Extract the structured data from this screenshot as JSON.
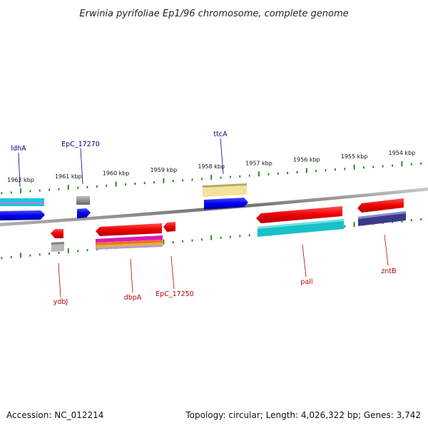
{
  "title": "Erwinia pyrifoliae Ep1/96 chromosome, complete genome",
  "footer": {
    "accession": "Accession: NC_012214",
    "topology": "Topology: circular; Length: 4,026,322 bp; Genes: 3,742"
  },
  "scale": {
    "unit": "kbp",
    "labels": [
      {
        "kbp": 1962,
        "text": "1962 kbp"
      },
      {
        "kbp": 1961,
        "text": "1961 kbp"
      },
      {
        "kbp": 1960,
        "text": "1960 kbp"
      },
      {
        "kbp": 1959,
        "text": "1959 kbp"
      },
      {
        "kbp": 1958,
        "text": "1958 kbp"
      },
      {
        "kbp": 1957,
        "text": "1957 kbp"
      },
      {
        "kbp": 1956,
        "text": "1956 kbp"
      },
      {
        "kbp": 1955,
        "text": "1955 kbp"
      },
      {
        "kbp": 1954,
        "text": "1954 kbp"
      }
    ]
  },
  "genes_top": [
    {
      "label": "ldhA",
      "color": "#00008b"
    },
    {
      "label": "EpC_17270",
      "color": "#00008b"
    },
    {
      "label": "ttcA",
      "color": "#00008b"
    }
  ],
  "genes_bottom": [
    {
      "label": "ydbJ",
      "color": "#c00000"
    },
    {
      "label": "dbpA",
      "color": "#c00000"
    },
    {
      "label": "EpC_17250",
      "color": "#c00000"
    },
    {
      "label": "pall",
      "color": "#c00000"
    },
    {
      "label": "zntB",
      "color": "#c00000"
    }
  ],
  "colors": {
    "backbone": "#808080",
    "ticks": "#1a7a1a",
    "forward_gene": "#0000ee",
    "reverse_gene": "#ee0000"
  }
}
